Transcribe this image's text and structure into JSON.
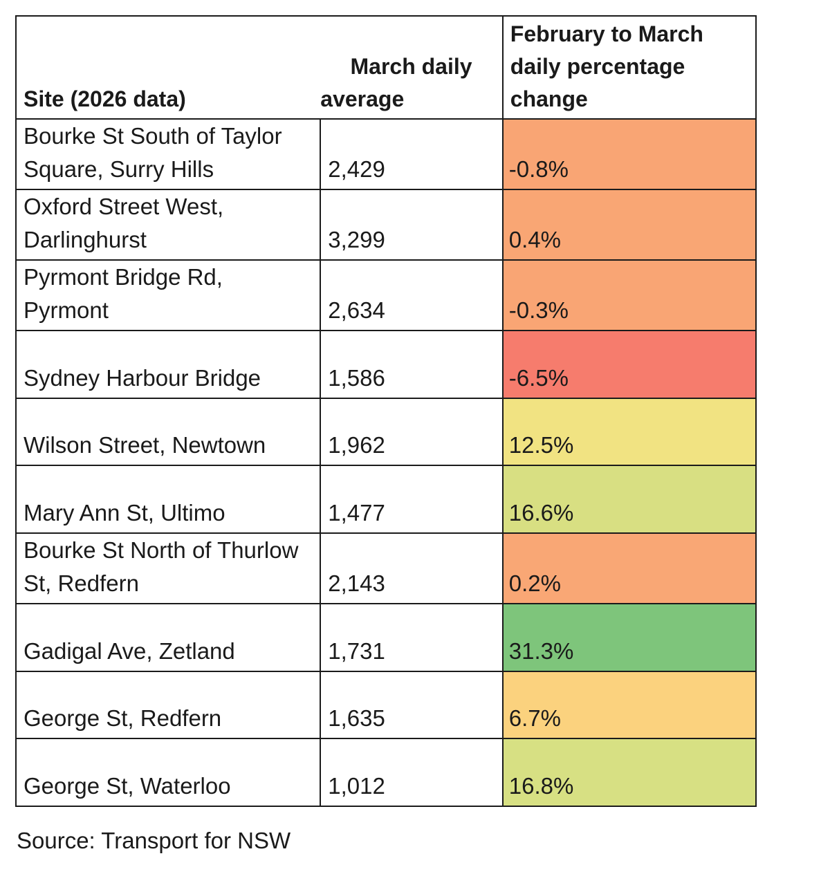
{
  "table": {
    "headers": {
      "site": "Site (2026 data)",
      "average_line1": "March daily",
      "average_line2": "average",
      "change": "February to March daily percentage change"
    },
    "rows": [
      {
        "site": "Bourke St South of Taylor Square, Surry Hills",
        "average": "2,429",
        "change": "-0.8%",
        "color": "#f9a574"
      },
      {
        "site": "Oxford Street West, Darlinghurst",
        "average": "3,299",
        "change": "0.4%",
        "color": "#f9a674"
      },
      {
        "site": "Pyrmont Bridge Rd, Pyrmont",
        "average": "2,634",
        "change": "-0.3%",
        "color": "#f9a574"
      },
      {
        "site": "Sydney Harbour Bridge",
        "average": "1,586",
        "change": "-6.5%",
        "color": "#f67c6d"
      },
      {
        "site": "Wilson Street, Newtown",
        "average": "1,962",
        "change": "12.5%",
        "color": "#f1e382"
      },
      {
        "site": "Mary Ann St, Ultimo",
        "average": "1,477",
        "change": "16.6%",
        "color": "#d8df82"
      },
      {
        "site": "Bourke St North of Thurlow St, Redfern",
        "average": "2,143",
        "change": "0.2%",
        "color": "#f9a775"
      },
      {
        "site": "Gadigal Ave, Zetland",
        "average": "1,731",
        "change": "31.3%",
        "color": "#7ec57b"
      },
      {
        "site": "George St, Redfern",
        "average": "1,635",
        "change": "6.7%",
        "color": "#fbd27e"
      },
      {
        "site": "George St, Waterloo",
        "average": "1,012",
        "change": "16.8%",
        "color": "#d7e083"
      }
    ]
  },
  "source": "Source: Transport for NSW"
}
